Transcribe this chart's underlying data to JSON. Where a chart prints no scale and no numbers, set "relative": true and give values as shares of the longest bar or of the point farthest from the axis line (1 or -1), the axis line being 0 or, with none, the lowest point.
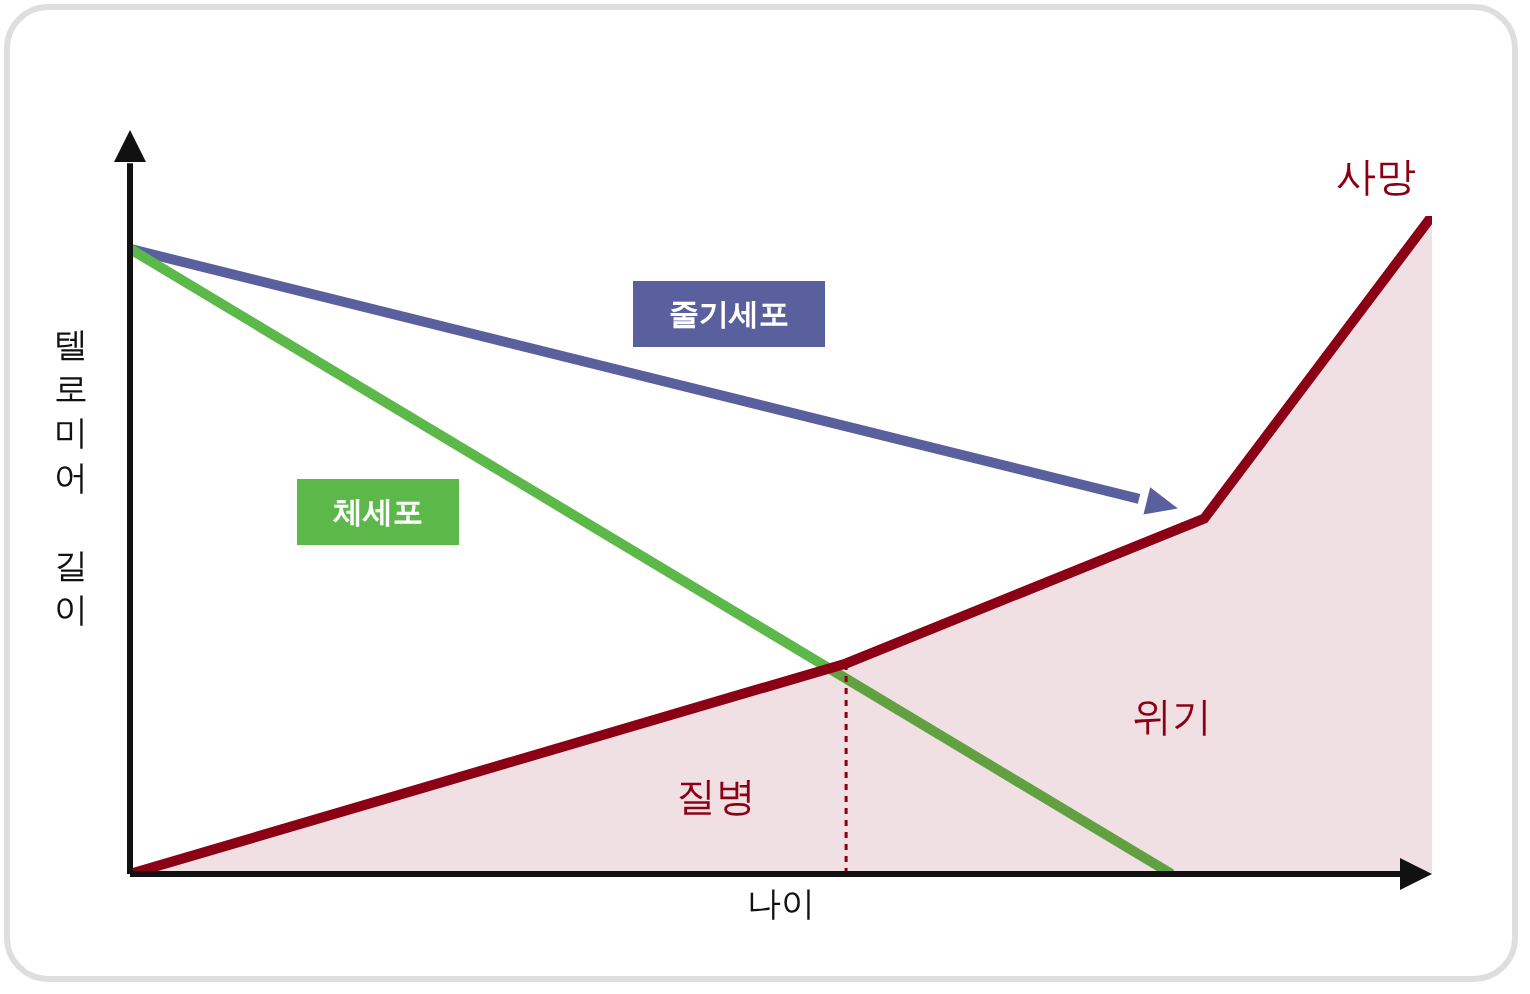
{
  "chart_data": {
    "type": "line",
    "relative": true,
    "xlabel": "나이",
    "ylabel": "텔로미어 길이",
    "grid": false,
    "legend": false,
    "marker": "none",
    "line_style": "solid",
    "categories": [
      null,
      null,
      null,
      null,
      null,
      null,
      null,
      null,
      null,
      null,
      null,
      null,
      null,
      null,
      null,
      null,
      null,
      null,
      null,
      null,
      null,
      null,
      null,
      null,
      null,
      null,
      null,
      null,
      null,
      null,
      null,
      null,
      null,
      null,
      null,
      null,
      null,
      null,
      null,
      null,
      null
    ],
    "series": [
      {
        "name": "줄기세포",
        "color": "#5a5f9e",
        "values": [
          0.95,
          null,
          null,
          null,
          null,
          null,
          null,
          null,
          null,
          null,
          null,
          null,
          null,
          null,
          null,
          null,
          null,
          null,
          null,
          null,
          null,
          null,
          null,
          null,
          null,
          null,
          null,
          null,
          null,
          null,
          null,
          0.57,
          null,
          null,
          null,
          null,
          null,
          null,
          null,
          null,
          null
        ]
      },
      {
        "name": "체세포",
        "color": "#5cb848",
        "values": [
          0.95,
          null,
          null,
          null,
          null,
          null,
          null,
          null,
          null,
          null,
          null,
          null,
          null,
          null,
          null,
          null,
          null,
          null,
          null,
          null,
          null,
          null,
          null,
          null,
          null,
          null,
          null,
          null,
          null,
          null,
          null,
          null,
          0,
          null,
          null,
          null,
          null,
          null,
          null,
          null,
          null
        ]
      },
      {
        "name": "사망",
        "type": "area",
        "color": "#8b0015",
        "values": [
          0,
          null,
          null,
          null,
          null,
          null,
          null,
          null,
          null,
          null,
          null,
          null,
          null,
          null,
          null,
          null,
          null,
          null,
          null,
          null,
          null,
          null,
          0.32,
          null,
          null,
          null,
          null,
          null,
          null,
          null,
          null,
          null,
          null,
          0.54,
          null,
          null,
          null,
          null,
          null,
          null,
          1.0
        ]
      }
    ],
    "annotations": [
      "위기",
      "질병"
    ]
  }
}
